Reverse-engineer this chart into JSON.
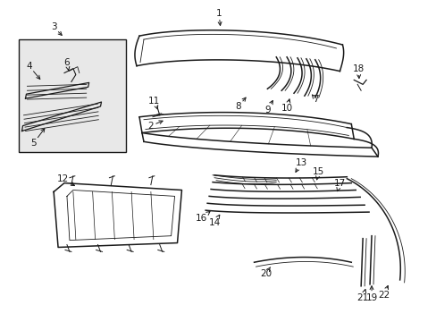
{
  "bg_color": "#ffffff",
  "line_color": "#1a1a1a",
  "label_color": "#1a1a1a",
  "box_fill": "#e8e8e8",
  "lw_main": 1.1,
  "lw_thin": 0.6,
  "lw_rib": 0.5,
  "font_size": 7.5,
  "arrow_lw": 0.7,
  "arrow_ms": 7
}
